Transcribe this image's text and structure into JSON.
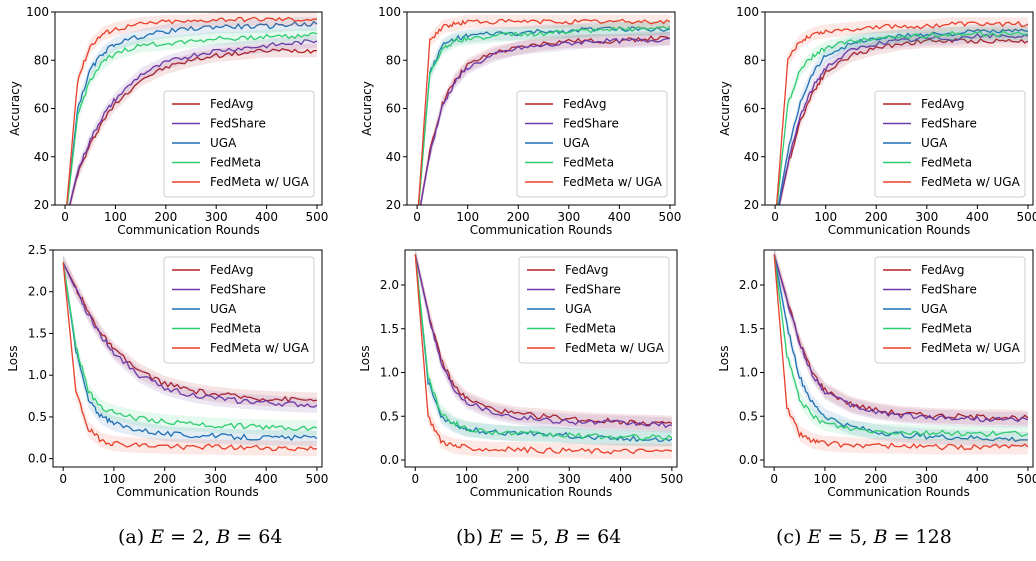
{
  "colors": {
    "FedAvg": "#b22222",
    "FedShare": "#6a3aa8",
    "UGA": "#1f6fb4",
    "FedMeta": "#2ecc71",
    "FedMeta w/ UGA": "#e8402a"
  },
  "captions": [
    {
      "label": "(a)",
      "e": "2",
      "b": "64"
    },
    {
      "label": "(b)",
      "e": "5",
      "b": "64"
    },
    {
      "label": "(c)",
      "e": "5",
      "b": "128"
    }
  ],
  "chart_data": [
    {
      "type": "line",
      "panel": "a-accuracy",
      "xlabel": "Communication Rounds",
      "ylabel": "Accuracy",
      "xlim": [
        -20,
        510
      ],
      "ylim": [
        20,
        100
      ],
      "xticks": [
        0,
        100,
        200,
        300,
        400,
        500
      ],
      "yticks": [
        20,
        40,
        60,
        80,
        100
      ],
      "legend": "lower-right",
      "x": [
        0,
        25,
        50,
        75,
        100,
        150,
        200,
        250,
        300,
        350,
        400,
        450,
        500
      ],
      "series": [
        {
          "name": "FedAvg",
          "values": [
            12,
            33,
            45,
            55,
            62,
            72,
            77,
            80,
            82,
            83,
            84,
            84,
            84
          ]
        },
        {
          "name": "FedShare",
          "values": [
            12,
            34,
            47,
            57,
            64,
            74,
            79,
            82,
            84,
            85,
            86,
            87,
            88
          ]
        },
        {
          "name": "UGA",
          "values": [
            12,
            60,
            76,
            83,
            87,
            90,
            92,
            93,
            94,
            94,
            94,
            95,
            95
          ]
        },
        {
          "name": "FedMeta",
          "values": [
            12,
            57,
            72,
            79,
            83,
            86,
            87,
            88,
            89,
            89,
            90,
            90,
            91
          ]
        },
        {
          "name": "FedMeta w/ UGA",
          "values": [
            12,
            72,
            86,
            91,
            93,
            95,
            96,
            96,
            97,
            97,
            97,
            97,
            97
          ]
        }
      ]
    },
    {
      "type": "line",
      "panel": "b-accuracy",
      "xlabel": "Communication Rounds",
      "ylabel": "Accuracy",
      "xlim": [
        -20,
        510
      ],
      "ylim": [
        20,
        100
      ],
      "xticks": [
        0,
        100,
        200,
        300,
        400,
        500
      ],
      "yticks": [
        20,
        40,
        60,
        80,
        100
      ],
      "legend": "lower-right",
      "x": [
        0,
        25,
        50,
        75,
        100,
        150,
        200,
        250,
        300,
        350,
        400,
        450,
        500
      ],
      "series": [
        {
          "name": "FedAvg",
          "values": [
            12,
            42,
            62,
            72,
            78,
            83,
            85,
            87,
            88,
            88,
            88,
            89,
            89
          ]
        },
        {
          "name": "FedShare",
          "values": [
            12,
            41,
            61,
            71,
            77,
            82,
            85,
            86,
            87,
            88,
            88,
            88,
            89
          ]
        },
        {
          "name": "UGA",
          "values": [
            12,
            75,
            86,
            89,
            90,
            91,
            91,
            92,
            92,
            93,
            93,
            93,
            93
          ]
        },
        {
          "name": "FedMeta",
          "values": [
            12,
            74,
            85,
            88,
            89,
            90,
            91,
            91,
            92,
            92,
            93,
            93,
            94
          ]
        },
        {
          "name": "FedMeta w/ UGA",
          "values": [
            12,
            88,
            94,
            95,
            96,
            96,
            96,
            96,
            96,
            96,
            96,
            96,
            96
          ]
        }
      ]
    },
    {
      "type": "line",
      "panel": "c-accuracy",
      "xlabel": "Communication Rounds",
      "ylabel": "Accuracy",
      "xlim": [
        -20,
        510
      ],
      "ylim": [
        20,
        100
      ],
      "xticks": [
        0,
        100,
        200,
        300,
        400,
        500
      ],
      "yticks": [
        20,
        40,
        60,
        80,
        100
      ],
      "legend": "lower-right",
      "x": [
        0,
        25,
        50,
        75,
        100,
        150,
        200,
        250,
        300,
        350,
        400,
        450,
        500
      ],
      "series": [
        {
          "name": "FedAvg",
          "values": [
            12,
            36,
            55,
            67,
            75,
            82,
            85,
            87,
            88,
            88,
            88,
            88,
            88
          ]
        },
        {
          "name": "FedShare",
          "values": [
            12,
            37,
            57,
            69,
            77,
            84,
            87,
            88,
            89,
            89,
            90,
            90,
            90
          ]
        },
        {
          "name": "UGA",
          "values": [
            12,
            42,
            63,
            75,
            82,
            87,
            89,
            90,
            91,
            91,
            92,
            92,
            92
          ]
        },
        {
          "name": "FedMeta",
          "values": [
            12,
            62,
            76,
            82,
            85,
            88,
            89,
            90,
            90,
            91,
            91,
            91,
            91
          ]
        },
        {
          "name": "FedMeta w/ UGA",
          "values": [
            12,
            80,
            88,
            91,
            92,
            93,
            94,
            94,
            94,
            95,
            95,
            95,
            95
          ]
        }
      ]
    },
    {
      "type": "line",
      "panel": "a-loss",
      "xlabel": "Communication Rounds",
      "ylabel": "Loss",
      "xlim": [
        -20,
        510
      ],
      "ylim": [
        -0.1,
        2.5
      ],
      "xticks": [
        0,
        100,
        200,
        300,
        400,
        500
      ],
      "yticks": [
        0.0,
        0.5,
        1.0,
        1.5,
        2.0,
        2.5
      ],
      "yticklabels": [
        "0.0",
        "0.5",
        "1.0",
        "1.5",
        "2.0",
        "2.5"
      ],
      "legend": "upper-right",
      "x": [
        0,
        25,
        50,
        75,
        100,
        150,
        200,
        250,
        300,
        350,
        400,
        450,
        500
      ],
      "series": [
        {
          "name": "FedAvg",
          "values": [
            2.35,
            2.05,
            1.75,
            1.5,
            1.3,
            1.05,
            0.9,
            0.82,
            0.77,
            0.74,
            0.72,
            0.71,
            0.7
          ]
        },
        {
          "name": "FedShare",
          "values": [
            2.35,
            2.02,
            1.72,
            1.47,
            1.27,
            1.0,
            0.85,
            0.77,
            0.72,
            0.69,
            0.67,
            0.65,
            0.64
          ]
        },
        {
          "name": "UGA",
          "values": [
            2.35,
            1.3,
            0.7,
            0.5,
            0.42,
            0.35,
            0.3,
            0.28,
            0.27,
            0.26,
            0.25,
            0.25,
            0.24
          ]
        },
        {
          "name": "FedMeta",
          "values": [
            2.35,
            1.35,
            0.8,
            0.62,
            0.55,
            0.48,
            0.44,
            0.42,
            0.4,
            0.39,
            0.38,
            0.37,
            0.37
          ]
        },
        {
          "name": "FedMeta w/ UGA",
          "values": [
            2.35,
            0.8,
            0.35,
            0.22,
            0.18,
            0.16,
            0.15,
            0.14,
            0.14,
            0.13,
            0.13,
            0.12,
            0.12
          ]
        }
      ]
    },
    {
      "type": "line",
      "panel": "b-loss",
      "xlabel": "Communication Rounds",
      "ylabel": "Loss",
      "xlim": [
        -20,
        510
      ],
      "ylim": [
        -0.08,
        2.4
      ],
      "xticks": [
        0,
        100,
        200,
        300,
        400,
        500
      ],
      "yticks": [
        0.0,
        0.5,
        1.0,
        1.5,
        2.0
      ],
      "yticklabels": [
        "0.0",
        "0.5",
        "1.0",
        "1.5",
        "2.0"
      ],
      "legend": "upper-right",
      "x": [
        0,
        25,
        50,
        75,
        100,
        150,
        200,
        250,
        300,
        350,
        400,
        450,
        500
      ],
      "series": [
        {
          "name": "FedAvg",
          "values": [
            2.35,
            1.7,
            1.15,
            0.85,
            0.7,
            0.58,
            0.52,
            0.5,
            0.47,
            0.45,
            0.44,
            0.43,
            0.42
          ]
        },
        {
          "name": "FedShare",
          "values": [
            2.35,
            1.68,
            1.12,
            0.82,
            0.67,
            0.55,
            0.49,
            0.46,
            0.44,
            0.43,
            0.42,
            0.41,
            0.4
          ]
        },
        {
          "name": "UGA",
          "values": [
            2.35,
            0.9,
            0.5,
            0.4,
            0.35,
            0.32,
            0.3,
            0.3,
            0.28,
            0.26,
            0.25,
            0.24,
            0.24
          ]
        },
        {
          "name": "FedMeta",
          "values": [
            2.35,
            0.95,
            0.55,
            0.42,
            0.36,
            0.32,
            0.3,
            0.29,
            0.28,
            0.27,
            0.26,
            0.26,
            0.25
          ]
        },
        {
          "name": "FedMeta w/ UGA",
          "values": [
            2.35,
            0.5,
            0.22,
            0.16,
            0.14,
            0.12,
            0.12,
            0.11,
            0.11,
            0.1,
            0.1,
            0.1,
            0.1
          ]
        }
      ]
    },
    {
      "type": "line",
      "panel": "c-loss",
      "xlabel": "Communication Rounds",
      "ylabel": "Loss",
      "xlim": [
        -20,
        510
      ],
      "ylim": [
        -0.08,
        2.4
      ],
      "xticks": [
        0,
        100,
        200,
        300,
        400,
        500
      ],
      "yticks": [
        0.0,
        0.5,
        1.0,
        1.5,
        2.0
      ],
      "yticklabels": [
        "0.0",
        "0.5",
        "1.0",
        "1.5",
        "2.0"
      ],
      "legend": "upper-right",
      "x": [
        0,
        25,
        50,
        75,
        100,
        150,
        200,
        250,
        300,
        350,
        400,
        450,
        500
      ],
      "series": [
        {
          "name": "FedAvg",
          "values": [
            2.35,
            1.85,
            1.35,
            1.0,
            0.8,
            0.64,
            0.57,
            0.53,
            0.51,
            0.5,
            0.49,
            0.49,
            0.48
          ]
        },
        {
          "name": "FedShare",
          "values": [
            2.35,
            1.83,
            1.33,
            0.98,
            0.78,
            0.62,
            0.55,
            0.51,
            0.49,
            0.48,
            0.47,
            0.46,
            0.46
          ]
        },
        {
          "name": "UGA",
          "values": [
            2.35,
            1.55,
            0.95,
            0.65,
            0.5,
            0.38,
            0.32,
            0.29,
            0.27,
            0.26,
            0.25,
            0.24,
            0.23
          ]
        },
        {
          "name": "FedMeta",
          "values": [
            2.35,
            1.2,
            0.7,
            0.5,
            0.42,
            0.36,
            0.33,
            0.32,
            0.31,
            0.31,
            0.3,
            0.3,
            0.3
          ]
        },
        {
          "name": "FedMeta w/ UGA",
          "values": [
            2.35,
            0.6,
            0.3,
            0.22,
            0.19,
            0.17,
            0.16,
            0.16,
            0.15,
            0.15,
            0.15,
            0.15,
            0.15
          ]
        }
      ]
    }
  ]
}
